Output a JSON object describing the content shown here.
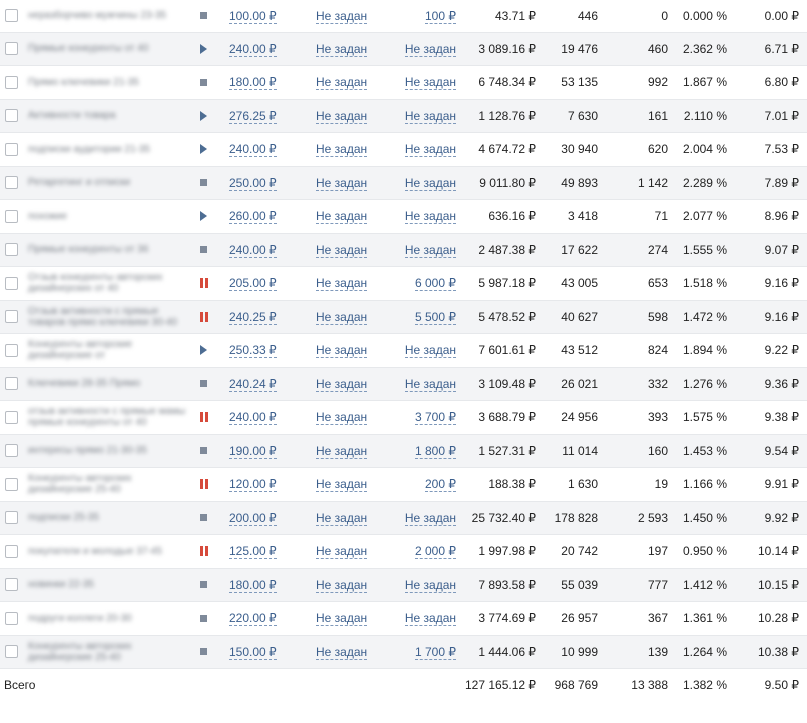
{
  "total": {
    "label": "Всего",
    "spend": "127 165.12 ₽",
    "views": "968 769",
    "clicks": "13 388",
    "ctr": "1.382 %",
    "cpc": "9.50 ₽"
  },
  "rows": [
    {
      "name": "неразборчиво мужчины 23-35",
      "status": "stop",
      "bid": "100.00 ₽",
      "limit1": "Не задан",
      "limit2": "100 ₽",
      "spend": "43.71 ₽",
      "views": "446",
      "clicks": "0",
      "ctr": "0.000 %",
      "cpc": "0.00 ₽"
    },
    {
      "name": "Прямые конкуренты от 40",
      "status": "play",
      "bid": "240.00 ₽",
      "limit1": "Не задан",
      "limit2": "Не задан",
      "spend": "3 089.16 ₽",
      "views": "19 476",
      "clicks": "460",
      "ctr": "2.362 %",
      "cpc": "6.71 ₽"
    },
    {
      "name": "Прямо ключевики 21-35",
      "status": "stop",
      "bid": "180.00 ₽",
      "limit1": "Не задан",
      "limit2": "Не задан",
      "spend": "6 748.34 ₽",
      "views": "53 135",
      "clicks": "992",
      "ctr": "1.867 %",
      "cpc": "6.80 ₽"
    },
    {
      "name": "Активности товара",
      "status": "play",
      "bid": "276.25 ₽",
      "limit1": "Не задан",
      "limit2": "Не задан",
      "spend": "1 128.76 ₽",
      "views": "7 630",
      "clicks": "161",
      "ctr": "2.110 %",
      "cpc": "7.01 ₽"
    },
    {
      "name": "подписки аудитории 21-35",
      "status": "play",
      "bid": "240.00 ₽",
      "limit1": "Не задан",
      "limit2": "Не задан",
      "spend": "4 674.72 ₽",
      "views": "30 940",
      "clicks": "620",
      "ctr": "2.004 %",
      "cpc": "7.53 ₽"
    },
    {
      "name": "Ретаргетинг и отписки",
      "status": "stop",
      "bid": "250.00 ₽",
      "limit1": "Не задан",
      "limit2": "Не задан",
      "spend": "9 011.80 ₽",
      "views": "49 893",
      "clicks": "1 142",
      "ctr": "2.289 %",
      "cpc": "7.89 ₽"
    },
    {
      "name": "похожие",
      "status": "play",
      "bid": "260.00 ₽",
      "limit1": "Не задан",
      "limit2": "Не задан",
      "spend": "636.16 ₽",
      "views": "3 418",
      "clicks": "71",
      "ctr": "2.077 %",
      "cpc": "8.96 ₽"
    },
    {
      "name": "Прямые конкуренты от 36",
      "status": "stop",
      "bid": "240.00 ₽",
      "limit1": "Не задан",
      "limit2": "Не задан",
      "spend": "2 487.38 ₽",
      "views": "17 622",
      "clicks": "274",
      "ctr": "1.555 %",
      "cpc": "9.07 ₽"
    },
    {
      "name": "Отзыв конкуренты авторских дизайнерских от 40",
      "status": "pause",
      "bid": "205.00 ₽",
      "limit1": "Не задан",
      "limit2": "6 000 ₽",
      "spend": "5 987.18 ₽",
      "views": "43 005",
      "clicks": "653",
      "ctr": "1.518 %",
      "cpc": "9.16 ₽"
    },
    {
      "name": "Отзыв активности с прямые товаров прямо ключевики 30-40",
      "status": "pause",
      "bid": "240.25 ₽",
      "limit1": "Не задан",
      "limit2": "5 500 ₽",
      "spend": "5 478.52 ₽",
      "views": "40 627",
      "clicks": "598",
      "ctr": "1.472 %",
      "cpc": "9.16 ₽"
    },
    {
      "name": "Конкуренты авторские дизайнерские от",
      "status": "play",
      "bid": "250.33 ₽",
      "limit1": "Не задан",
      "limit2": "Не задан",
      "spend": "7 601.61 ₽",
      "views": "43 512",
      "clicks": "824",
      "ctr": "1.894 %",
      "cpc": "9.22 ₽"
    },
    {
      "name": "Ключевики 28-35 Прямо",
      "status": "stop",
      "bid": "240.24 ₽",
      "limit1": "Не задан",
      "limit2": "Не задан",
      "spend": "3 109.48 ₽",
      "views": "26 021",
      "clicks": "332",
      "ctr": "1.276 %",
      "cpc": "9.36 ₽"
    },
    {
      "name": "отзыв активности с прямые мамы прямые конкуренты от 40",
      "status": "pause",
      "bid": "240.00 ₽",
      "limit1": "Не задан",
      "limit2": "3 700 ₽",
      "spend": "3 688.79 ₽",
      "views": "24 956",
      "clicks": "393",
      "ctr": "1.575 %",
      "cpc": "9.38 ₽"
    },
    {
      "name": "интересы прямо 21-30-35",
      "status": "stop",
      "bid": "190.00 ₽",
      "limit1": "Не задан",
      "limit2": "1 800 ₽",
      "spend": "1 527.31 ₽",
      "views": "11 014",
      "clicks": "160",
      "ctr": "1.453 %",
      "cpc": "9.54 ₽"
    },
    {
      "name": "Конкуренты авторских дизайнерские 25-40",
      "status": "pause",
      "bid": "120.00 ₽",
      "limit1": "Не задан",
      "limit2": "200 ₽",
      "spend": "188.38 ₽",
      "views": "1 630",
      "clicks": "19",
      "ctr": "1.166 %",
      "cpc": "9.91 ₽"
    },
    {
      "name": "подписки 25-35",
      "status": "stop",
      "bid": "200.00 ₽",
      "limit1": "Не задан",
      "limit2": "Не задан",
      "spend": "25 732.40 ₽",
      "views": "178 828",
      "clicks": "2 593",
      "ctr": "1.450 %",
      "cpc": "9.92 ₽"
    },
    {
      "name": "покупатели и молодые 37-45",
      "status": "pause",
      "bid": "125.00 ₽",
      "limit1": "Не задан",
      "limit2": "2 000 ₽",
      "spend": "1 997.98 ₽",
      "views": "20 742",
      "clicks": "197",
      "ctr": "0.950 %",
      "cpc": "10.14 ₽"
    },
    {
      "name": "новинки 22-35",
      "status": "stop",
      "bid": "180.00 ₽",
      "limit1": "Не задан",
      "limit2": "Не задан",
      "spend": "7 893.58 ₽",
      "views": "55 039",
      "clicks": "777",
      "ctr": "1.412 %",
      "cpc": "10.15 ₽"
    },
    {
      "name": "подруги коллеги 20-30",
      "status": "stop",
      "bid": "220.00 ₽",
      "limit1": "Не задан",
      "limit2": "Не задан",
      "spend": "3 774.69 ₽",
      "views": "26 957",
      "clicks": "367",
      "ctr": "1.361 %",
      "cpc": "10.28 ₽"
    },
    {
      "name": "Конкуренты авторских дизайнерские 25-40",
      "status": "stop",
      "bid": "150.00 ₽",
      "limit1": "Не задан",
      "limit2": "1 700 ₽",
      "spend": "1 444.06 ₽",
      "views": "10 999",
      "clicks": "139",
      "ctr": "1.264 %",
      "cpc": "10.38 ₽"
    }
  ]
}
